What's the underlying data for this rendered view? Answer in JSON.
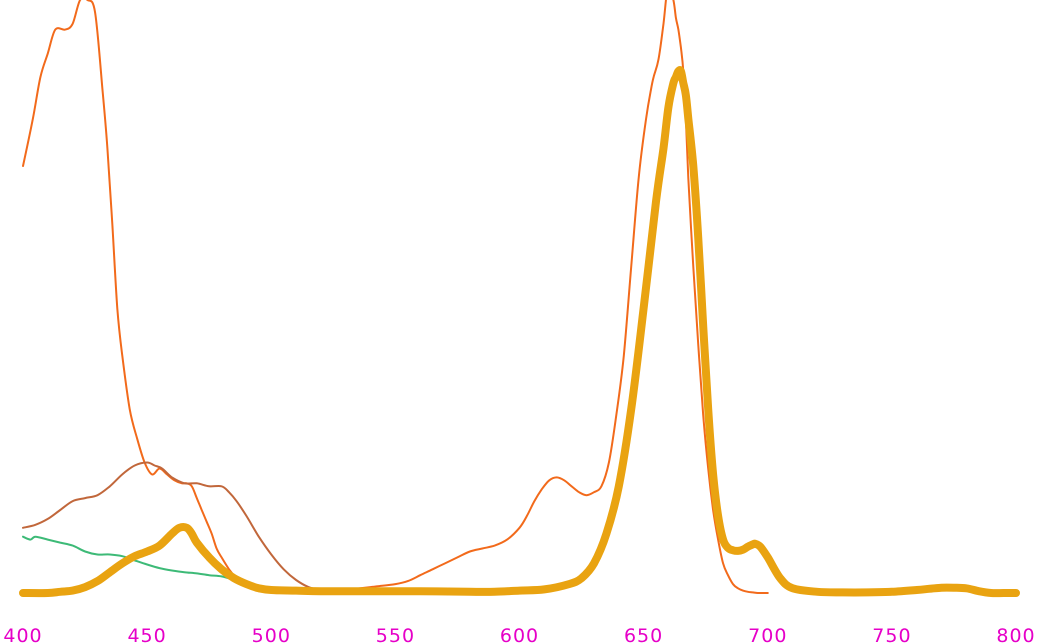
{
  "chart_data": {
    "type": "line",
    "title": "",
    "xlabel": "",
    "ylabel": "",
    "xlim": [
      400,
      800
    ],
    "ylim": [
      0,
      1
    ],
    "grid": false,
    "x_ticks": [
      "400",
      "450",
      "500",
      "550",
      "600",
      "650",
      "700",
      "750",
      "800"
    ],
    "tick_color": "#e600c8",
    "series": [
      {
        "color": "#f26a1b",
        "width": 2,
        "x": [
          400,
          404,
          407,
          410,
          413,
          417,
          420,
          423,
          426,
          429,
          432,
          434,
          436,
          438,
          440,
          443,
          446,
          449,
          452,
          455,
          458,
          461,
          464,
          466,
          468,
          470,
          472,
          474,
          476,
          478,
          480,
          483,
          486,
          489,
          492,
          495,
          498,
          501,
          505,
          510,
          515,
          520,
          525,
          530,
          540,
          550,
          555,
          560,
          565,
          570,
          575,
          580,
          585,
          590,
          595,
          600,
          603,
          606,
          609,
          612,
          615,
          618,
          621,
          624,
          627,
          630,
          633,
          636,
          639,
          642,
          645,
          648,
          651,
          653,
          654,
          656,
          658,
          660,
          662,
          663,
          664,
          665,
          666,
          667,
          668,
          670,
          672,
          674,
          676,
          678,
          680,
          682,
          684,
          686,
          688,
          690,
          692,
          694,
          696,
          698,
          700
        ],
        "y": [
          0.72,
          0.8,
          0.87,
          0.91,
          0.95,
          0.95,
          0.96,
          1.0,
          1.0,
          0.98,
          0.85,
          0.75,
          0.62,
          0.48,
          0.4,
          0.31,
          0.26,
          0.22,
          0.2,
          0.21,
          0.2,
          0.19,
          0.185,
          0.185,
          0.18,
          0.16,
          0.14,
          0.12,
          0.1,
          0.075,
          0.06,
          0.04,
          0.025,
          0.015,
          0.008,
          0.005,
          0.002,
          0.0,
          0.0,
          0.0,
          0.0,
          0.0,
          0.002,
          0.005,
          0.01,
          0.015,
          0.02,
          0.03,
          0.04,
          0.05,
          0.06,
          0.07,
          0.075,
          0.08,
          0.09,
          0.11,
          0.13,
          0.155,
          0.175,
          0.19,
          0.195,
          0.19,
          0.18,
          0.17,
          0.165,
          0.17,
          0.18,
          0.22,
          0.3,
          0.4,
          0.55,
          0.7,
          0.8,
          0.85,
          0.87,
          0.9,
          0.96,
          1.03,
          1.0,
          0.97,
          0.95,
          0.92,
          0.88,
          0.8,
          0.7,
          0.55,
          0.42,
          0.3,
          0.21,
          0.14,
          0.09,
          0.05,
          0.03,
          0.015,
          0.008,
          0.004,
          0.002,
          0.001,
          0.0,
          0.0,
          0.0
        ]
      },
      {
        "color": "#c1673b",
        "width": 2,
        "x": [
          400,
          405,
          410,
          415,
          420,
          425,
          430,
          435,
          440,
          445,
          450,
          453,
          456,
          460,
          465,
          470,
          475,
          480,
          483,
          486,
          490,
          495,
          500,
          505,
          510,
          515,
          520
        ],
        "y": [
          0.11,
          0.115,
          0.125,
          0.14,
          0.155,
          0.16,
          0.165,
          0.18,
          0.2,
          0.215,
          0.22,
          0.215,
          0.21,
          0.195,
          0.185,
          0.185,
          0.18,
          0.18,
          0.17,
          0.155,
          0.13,
          0.095,
          0.065,
          0.04,
          0.022,
          0.01,
          0.004
        ]
      },
      {
        "color": "#3dba77",
        "width": 2,
        "x": [
          400,
          403,
          405,
          410,
          415,
          420,
          425,
          430,
          435,
          440,
          445,
          450,
          455,
          460,
          465,
          470,
          475,
          480,
          485,
          490,
          495,
          500,
          505,
          510
        ],
        "y": [
          0.095,
          0.09,
          0.095,
          0.09,
          0.085,
          0.08,
          0.07,
          0.065,
          0.065,
          0.062,
          0.055,
          0.048,
          0.042,
          0.038,
          0.035,
          0.033,
          0.03,
          0.028,
          0.022,
          0.015,
          0.009,
          0.005,
          0.002,
          0.0
        ]
      },
      {
        "color": "#e9a311",
        "width": 8,
        "x": [
          400,
          410,
          415,
          420,
          425,
          430,
          435,
          440,
          445,
          450,
          455,
          460,
          463,
          466,
          468,
          470,
          475,
          480,
          485,
          490,
          495,
          500,
          510,
          520,
          540,
          560,
          580,
          590,
          600,
          610,
          620,
          625,
          630,
          635,
          640,
          645,
          650,
          655,
          658,
          660,
          662,
          663,
          664,
          665,
          666,
          667,
          668,
          670,
          672,
          674,
          676,
          678,
          680,
          682,
          684,
          686,
          688,
          690,
          692,
          694,
          695,
          697,
          700,
          705,
          710,
          720,
          730,
          740,
          750,
          760,
          765,
          770,
          775,
          780,
          785,
          790,
          795,
          800
        ],
        "y": [
          0.0,
          0.0,
          0.002,
          0.004,
          0.01,
          0.02,
          0.035,
          0.05,
          0.062,
          0.07,
          0.08,
          0.1,
          0.11,
          0.11,
          0.1,
          0.085,
          0.06,
          0.04,
          0.025,
          0.015,
          0.008,
          0.005,
          0.004,
          0.003,
          0.003,
          0.003,
          0.002,
          0.002,
          0.004,
          0.006,
          0.015,
          0.025,
          0.05,
          0.1,
          0.18,
          0.31,
          0.48,
          0.66,
          0.75,
          0.82,
          0.86,
          0.87,
          0.88,
          0.88,
          0.86,
          0.84,
          0.8,
          0.72,
          0.6,
          0.45,
          0.31,
          0.2,
          0.13,
          0.09,
          0.076,
          0.072,
          0.071,
          0.073,
          0.078,
          0.082,
          0.083,
          0.078,
          0.06,
          0.025,
          0.008,
          0.002,
          0.001,
          0.001,
          0.002,
          0.005,
          0.007,
          0.009,
          0.009,
          0.008,
          0.003,
          0.0,
          0.0,
          0.0
        ]
      }
    ]
  }
}
